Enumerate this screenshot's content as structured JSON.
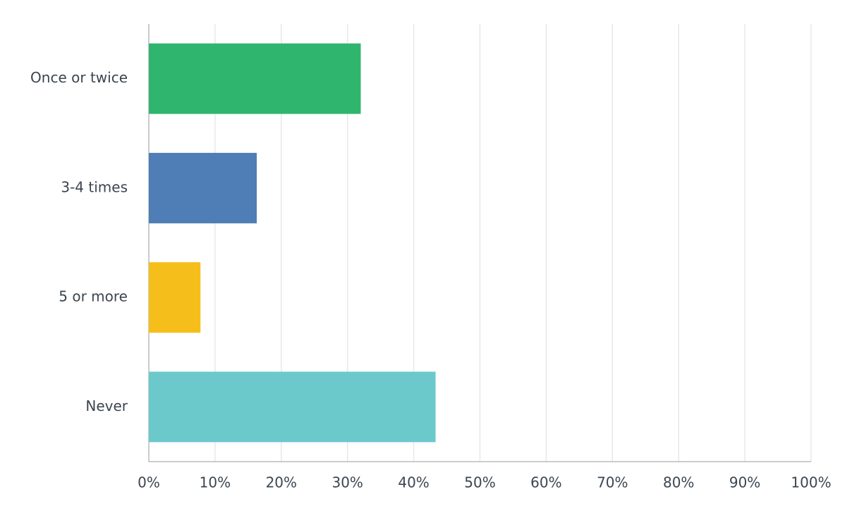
{
  "chart_data": {
    "type": "bar",
    "orientation": "horizontal",
    "categories": [
      "Once or twice",
      "3-4 times",
      "5 or more",
      "Never"
    ],
    "values": [
      32,
      16.3,
      7.8,
      43.3
    ],
    "colors": [
      "#2fb56d",
      "#4f7db6",
      "#f6be1a",
      "#6bc9cc"
    ],
    "xlim": [
      0,
      100
    ],
    "xticks": [
      {
        "value": 0,
        "label": "0%"
      },
      {
        "value": 10,
        "label": "10%"
      },
      {
        "value": 20,
        "label": "20%"
      },
      {
        "value": 30,
        "label": "30%"
      },
      {
        "value": 40,
        "label": "40%"
      },
      {
        "value": 50,
        "label": "50%"
      },
      {
        "value": 60,
        "label": "60%"
      },
      {
        "value": 70,
        "label": "70%"
      },
      {
        "value": 80,
        "label": "80%"
      },
      {
        "value": 90,
        "label": "90%"
      },
      {
        "value": 100,
        "label": "100%"
      }
    ],
    "grid": true
  }
}
